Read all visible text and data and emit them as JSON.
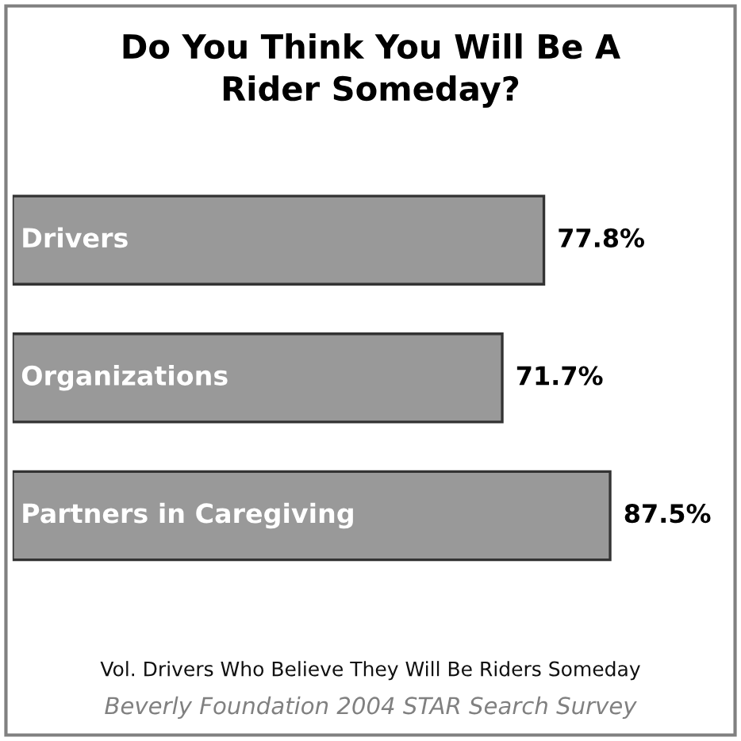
{
  "chart_data": {
    "type": "bar",
    "orientation": "horizontal",
    "title": "Do You Think You Will Be A\nRider Someday?",
    "categories": [
      "Drivers",
      "Organizations",
      "Partners in Caregiving"
    ],
    "values": [
      77.8,
      71.7,
      87.5
    ],
    "value_labels": [
      "77.8%",
      "71.7%",
      "87.5%"
    ],
    "color": "#999999",
    "annotations": [
      "Vol. Drivers Who Believe They Will Be Riders Someday",
      "Beverly Foundation 2004 STAR Search Survey"
    ]
  }
}
